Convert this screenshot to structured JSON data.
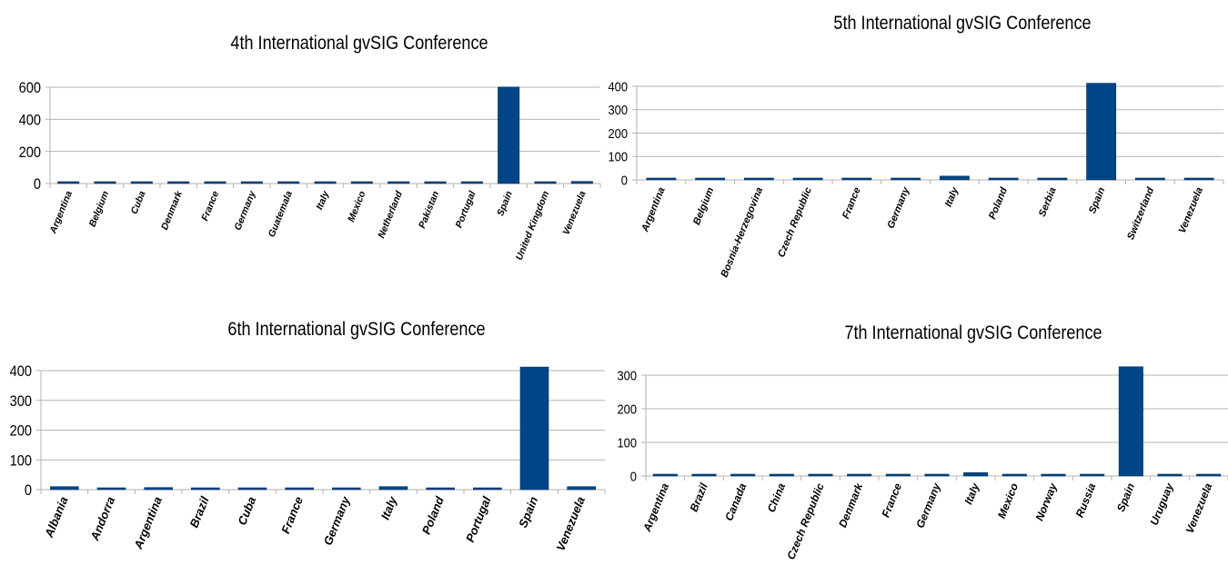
{
  "chart_data": [
    {
      "type": "bar",
      "title": "4th International gvSIG Conference",
      "xlabel": "",
      "ylabel": "",
      "ylim": [
        0,
        600
      ],
      "yticks": [
        0,
        200,
        400,
        600
      ],
      "grid": true,
      "color": "#004586",
      "categories": [
        "Argentina",
        "Belgium",
        "Cuba",
        "Denmark",
        "France",
        "Germany",
        "Guatemala",
        "Italy",
        "Mexico",
        "Netherland",
        "Pakistan",
        "Portugal",
        "Spain",
        "United Kingdom",
        "Venezuela"
      ],
      "values": [
        4,
        4,
        3,
        5,
        10,
        9,
        3,
        7,
        4,
        6,
        4,
        4,
        601,
        5,
        13
      ]
    },
    {
      "type": "bar",
      "title": "5th International gvSIG Conference",
      "xlabel": "",
      "ylabel": "",
      "ylim": [
        0,
        400
      ],
      "yticks": [
        0,
        100,
        200,
        300,
        400
      ],
      "grid": true,
      "color": "#004586",
      "categories": [
        "Argentina",
        "Belgium",
        "Bosnia-Herzegovina",
        "Czech Republic",
        "France",
        "Germany",
        "Italy",
        "Poland",
        "Serbia",
        "Spain",
        "Switzerland",
        "Venezuela"
      ],
      "values": [
        2,
        1,
        1,
        1,
        1,
        6,
        16,
        2,
        1,
        413,
        1,
        5
      ]
    },
    {
      "type": "bar",
      "title": "6th International gvSIG Conference",
      "xlabel": "",
      "ylabel": "",
      "ylim": [
        0,
        400
      ],
      "yticks": [
        0,
        100,
        200,
        300,
        400
      ],
      "grid": true,
      "color": "#004586",
      "categories": [
        "Albania",
        "Andorra",
        "Argentina",
        "Brazil",
        "Cuba",
        "France",
        "Germany",
        "Italy",
        "Poland",
        "Portugal",
        "Spain",
        "Venezuela"
      ],
      "values": [
        10,
        2,
        7,
        6,
        2,
        4,
        3,
        10,
        2,
        2,
        412,
        10
      ]
    },
    {
      "type": "bar",
      "title": "7th International gvSIG Conference",
      "xlabel": "",
      "ylabel": "",
      "ylim": [
        0,
        300
      ],
      "yticks": [
        0,
        100,
        200,
        300
      ],
      "grid": true,
      "color": "#004586",
      "categories": [
        "Argentina",
        "Brazil",
        "Canada",
        "China",
        "Czech Republic",
        "Denmark",
        "France",
        "Germany",
        "Italy",
        "Mexico",
        "Norway",
        "Russia",
        "Spain",
        "Uruguay",
        "Venezuela"
      ],
      "values": [
        3,
        3,
        3,
        4,
        3,
        3,
        3,
        3,
        10,
        3,
        3,
        3,
        325,
        3,
        4
      ]
    }
  ]
}
